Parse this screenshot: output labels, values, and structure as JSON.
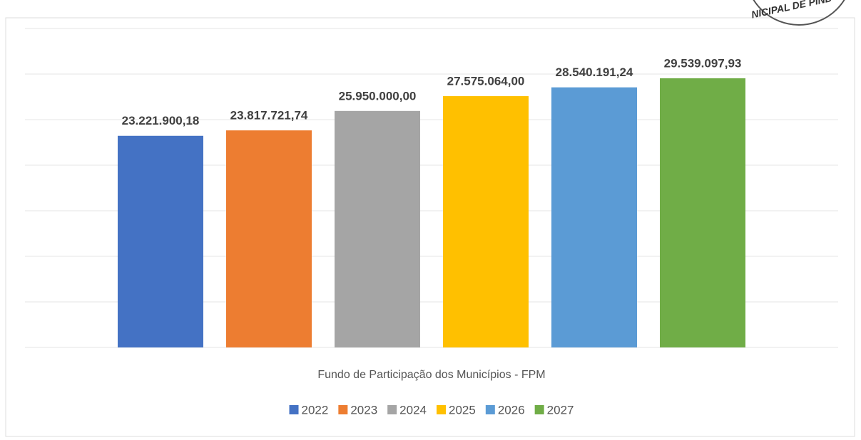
{
  "stamp": "NICIPAL DE PIND",
  "chart_data": {
    "type": "bar",
    "categories": [
      "Fundo de Participação dos Municípios - FPM"
    ],
    "series": [
      {
        "name": "2022",
        "color": "#4472c4",
        "values": [
          23221900.18
        ],
        "value_labels": [
          "23.221.900,18"
        ]
      },
      {
        "name": "2023",
        "color": "#ed7d31",
        "values": [
          23817721.74
        ],
        "value_labels": [
          "23.817.721,74"
        ]
      },
      {
        "name": "2024",
        "color": "#a5a5a5",
        "values": [
          25950000.0
        ],
        "value_labels": [
          "25.950.000,00"
        ]
      },
      {
        "name": "2025",
        "color": "#ffc000",
        "values": [
          27575064.0
        ],
        "value_labels": [
          "27.575.064,00"
        ]
      },
      {
        "name": "2026",
        "color": "#5b9bd5",
        "values": [
          28540191.24
        ],
        "value_labels": [
          "28.540.191,24"
        ]
      },
      {
        "name": "2027",
        "color": "#70ad47",
        "values": [
          29539097.93
        ],
        "value_labels": [
          "29.539.097,93"
        ]
      }
    ],
    "ylim": [
      0,
      35000000
    ],
    "yticks": [
      0,
      5000000,
      10000000,
      15000000,
      20000000,
      25000000,
      30000000,
      35000000
    ],
    "grid": true,
    "legend": "bottom"
  }
}
